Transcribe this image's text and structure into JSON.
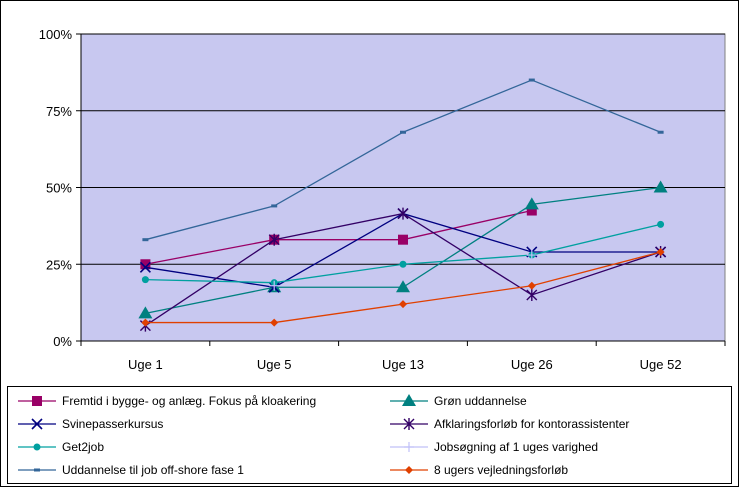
{
  "chart_data": {
    "type": "line",
    "title": "",
    "xlabel": "",
    "ylabel": "",
    "categories": [
      "Uge 1",
      "Uge 5",
      "Uge 13",
      "Uge 26",
      "Uge 52"
    ],
    "y_tick_labels": [
      "0%",
      "25%",
      "50%",
      "75%",
      "100%"
    ],
    "ylim": [
      0,
      100
    ],
    "grid": true,
    "plot_background": "#c8c8f0",
    "legend_position": "bottom",
    "series": [
      {
        "name": "Fremtid i bygge- og anlæg. Fokus på kloakering",
        "color": "#990066",
        "marker": "square",
        "values": [
          25,
          33,
          33,
          42.5,
          null
        ]
      },
      {
        "name": "Grøn uddannelse",
        "color": "#008080",
        "marker": "triangle",
        "values": [
          9,
          17.5,
          17.5,
          44.5,
          50
        ]
      },
      {
        "name": "Svinepasserkursus",
        "color": "#000080",
        "marker": "x",
        "values": [
          24,
          17.5,
          41.5,
          29,
          29
        ]
      },
      {
        "name": "Afklaringsforløb for kontorassistenter",
        "color": "#330066",
        "marker": "star",
        "values": [
          5,
          33,
          41.5,
          15,
          29
        ]
      },
      {
        "name": "Get2job",
        "color": "#00a0a0",
        "marker": "circle",
        "values": [
          20,
          19,
          25,
          28,
          38
        ]
      },
      {
        "name": "Jobsøgning af 1 uges varighed",
        "color": "#c0c0f8",
        "marker": "plus",
        "values": [
          null,
          18,
          null,
          28,
          null
        ]
      },
      {
        "name": "Uddannelse til job off-shore fase 1",
        "color": "#336699",
        "marker": "dash",
        "values": [
          33,
          44,
          68,
          85,
          68
        ]
      },
      {
        "name": "8 ugers vejledningsforløb",
        "color": "#e04000",
        "marker": "diamond",
        "values": [
          6,
          6,
          12,
          18,
          29
        ]
      }
    ]
  }
}
